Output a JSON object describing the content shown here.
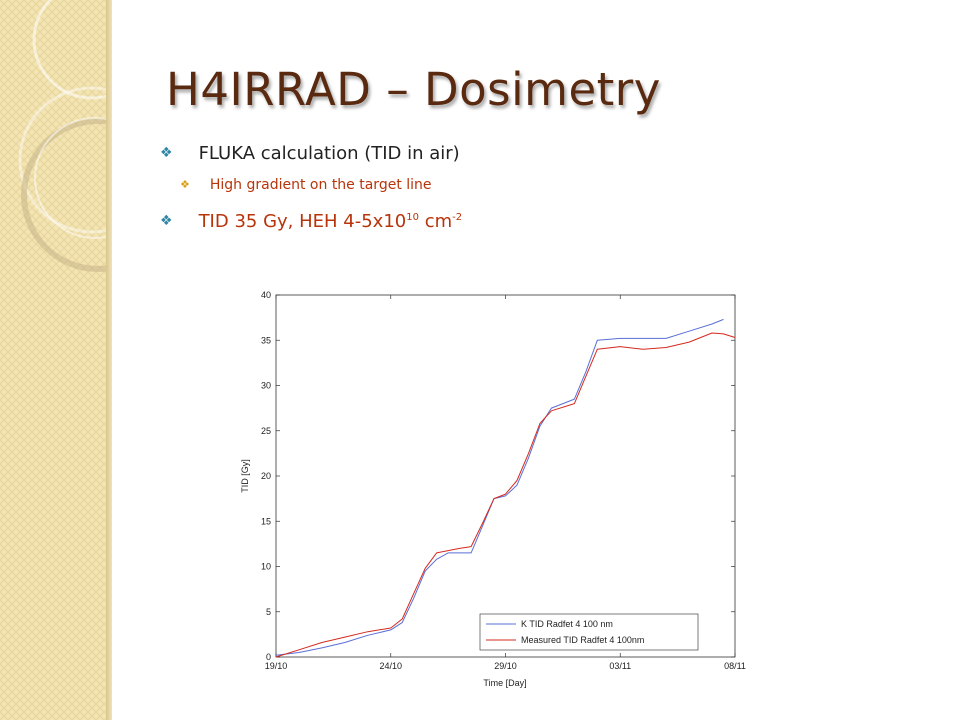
{
  "slide": {
    "title": "H4IRRAD – Dosimetry",
    "bullets": [
      {
        "text": "FLUKA calculation (TID in air)"
      },
      {
        "text": "High gradient on the target line"
      },
      {
        "text_pre": "TID 35 Gy, HEH 4-5x10",
        "sup1": "10",
        "text_mid": " cm",
        "sup2": "-2"
      }
    ]
  },
  "colors": {
    "title": "#5a2a10",
    "accent_red": "#b8340a",
    "bullet_teal": "#2f86a6",
    "bullet_gold": "#d8a01b",
    "series_calc": "#5b6fd6",
    "series_meas": "#d42a1e"
  },
  "icons": {
    "bullet": "four-diamond-bullet-icon"
  },
  "chart_data": {
    "type": "line",
    "xlabel": "Time [Day]",
    "ylabel": "TID [Gy]",
    "x_ticks": [
      "19/10",
      "24/10",
      "29/10",
      "03/11",
      "08/11"
    ],
    "xlim": [
      "2012-10-19",
      "2012-11-08"
    ],
    "ylim": [
      0,
      40
    ],
    "y_ticks": [
      0,
      5,
      10,
      15,
      20,
      25,
      30,
      35,
      40
    ],
    "grid": false,
    "legend_position": "bottom-right",
    "series": [
      {
        "name": "K TID Radfet 4 100 nm",
        "color": "#5b6fd6",
        "points": [
          [
            "2012-10-19",
            0.2
          ],
          [
            "2012-10-20",
            0.5
          ],
          [
            "2012-10-21",
            1.0
          ],
          [
            "2012-10-22",
            1.6
          ],
          [
            "2012-10-23",
            2.4
          ],
          [
            "2012-10-24",
            3.0
          ],
          [
            "2012-10-24 12:00",
            3.8
          ],
          [
            "2012-10-25",
            6.5
          ],
          [
            "2012-10-25 12:00",
            9.5
          ],
          [
            "2012-10-26",
            10.8
          ],
          [
            "2012-10-26 12:00",
            11.5
          ],
          [
            "2012-10-27",
            11.5
          ],
          [
            "2012-10-27 12:00",
            11.5
          ],
          [
            "2012-10-28",
            14.5
          ],
          [
            "2012-10-28 12:00",
            17.5
          ],
          [
            "2012-10-29",
            17.8
          ],
          [
            "2012-10-29 12:00",
            19.0
          ],
          [
            "2012-10-30",
            22.0
          ],
          [
            "2012-10-30 12:00",
            25.5
          ],
          [
            "2012-10-31",
            27.5
          ],
          [
            "2012-11-01",
            28.5
          ],
          [
            "2012-11-01 12:00",
            31.5
          ],
          [
            "2012-11-02",
            35.0
          ],
          [
            "2012-11-03",
            35.2
          ],
          [
            "2012-11-04",
            35.2
          ],
          [
            "2012-11-05",
            35.2
          ],
          [
            "2012-11-06",
            36.0
          ],
          [
            "2012-11-07",
            36.8
          ],
          [
            "2012-11-07 12:00",
            37.3
          ]
        ]
      },
      {
        "name": "Measured TID Radfet 4 100nm",
        "color": "#d42a1e",
        "points": [
          [
            "2012-10-19",
            0.0
          ],
          [
            "2012-10-20",
            0.8
          ],
          [
            "2012-10-21",
            1.6
          ],
          [
            "2012-10-22",
            2.2
          ],
          [
            "2012-10-23",
            2.8
          ],
          [
            "2012-10-24",
            3.2
          ],
          [
            "2012-10-24 12:00",
            4.2
          ],
          [
            "2012-10-25",
            7.0
          ],
          [
            "2012-10-25 12:00",
            9.8
          ],
          [
            "2012-10-26",
            11.5
          ],
          [
            "2012-10-27",
            12.0
          ],
          [
            "2012-10-27 12:00",
            12.2
          ],
          [
            "2012-10-28",
            14.8
          ],
          [
            "2012-10-28 12:00",
            17.5
          ],
          [
            "2012-10-29",
            18.0
          ],
          [
            "2012-10-29 12:00",
            19.5
          ],
          [
            "2012-10-30",
            22.5
          ],
          [
            "2012-10-30 12:00",
            25.8
          ],
          [
            "2012-10-31",
            27.2
          ],
          [
            "2012-11-01",
            28.0
          ],
          [
            "2012-11-01 12:00",
            31.0
          ],
          [
            "2012-11-02",
            34.0
          ],
          [
            "2012-11-03",
            34.3
          ],
          [
            "2012-11-04",
            34.0
          ],
          [
            "2012-11-05",
            34.2
          ],
          [
            "2012-11-06",
            34.8
          ],
          [
            "2012-11-07",
            35.8
          ],
          [
            "2012-11-07 12:00",
            35.7
          ],
          [
            "2012-11-08",
            35.3
          ]
        ]
      }
    ]
  }
}
